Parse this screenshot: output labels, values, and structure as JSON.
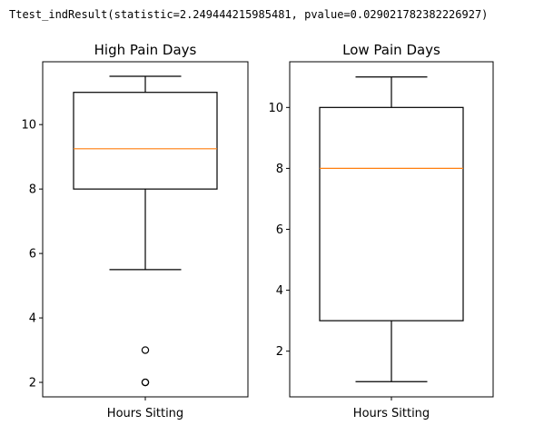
{
  "output_text": "Ttest_indResult(statistic=2.249444215985481, pvalue=0.029021782382226927)",
  "colors": {
    "box": "#000000",
    "median": "#ff7f0e",
    "background": "#ffffff"
  },
  "chart_data": [
    {
      "type": "box",
      "title": "High Pain Days",
      "xlabel": "",
      "ylabel": "",
      "categories": [
        "Hours Sitting"
      ],
      "ylim": [
        1.55,
        11.95
      ],
      "yticks": [
        2,
        4,
        6,
        8,
        10
      ],
      "grid": false,
      "box": {
        "whisker_low": 5.5,
        "q1": 8,
        "median": 9.25,
        "q3": 11,
        "whisker_high": 11.5,
        "outliers": [
          3,
          2,
          2
        ]
      }
    },
    {
      "type": "box",
      "title": "Low Pain Days",
      "xlabel": "",
      "ylabel": "",
      "categories": [
        "Hours Sitting"
      ],
      "ylim": [
        0.5,
        11.5
      ],
      "yticks": [
        2,
        4,
        6,
        8,
        10
      ],
      "grid": false,
      "box": {
        "whisker_low": 1,
        "q1": 3,
        "median": 8,
        "q3": 10,
        "whisker_high": 11,
        "outliers": []
      }
    }
  ]
}
